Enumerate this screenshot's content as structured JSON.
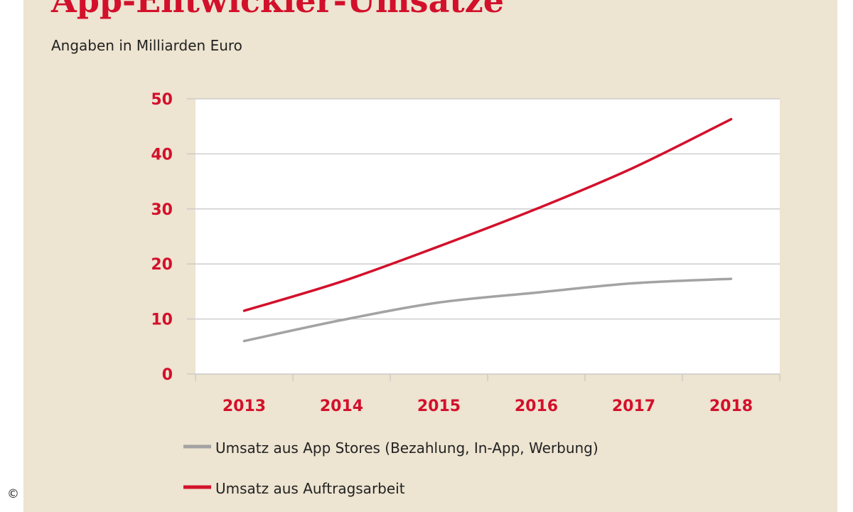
{
  "title": "App-Entwickler-Umsätze",
  "subtitle": "Angaben in Milliarden Euro",
  "copyright_symbol": "©",
  "colors": {
    "accent": "#d3102b",
    "gray_series": "#a3a3a3",
    "background": "#ede4d1",
    "plot_bg": "#ffffff"
  },
  "chart_data": {
    "type": "line",
    "title": "App-Entwickler-Umsätze",
    "subtitle": "Angaben in Milliarden Euro",
    "xlabel": "",
    "ylabel": "",
    "x": [
      "2013",
      "2014",
      "2015",
      "2016",
      "2017",
      "2018"
    ],
    "ylim": [
      0,
      50
    ],
    "yticks": [
      0,
      10,
      20,
      30,
      40,
      50
    ],
    "grid": true,
    "legend_position": "bottom",
    "series": [
      {
        "name": "Umsatz aus App Stores (Bezahlung, In-App, Werbung)",
        "color": "#a3a3a3",
        "values": [
          6,
          9.8,
          13,
          14.8,
          16.5,
          17.3
        ]
      },
      {
        "name": "Umsatz aus Auftragsarbeit",
        "color": "#d3102b",
        "values": [
          11.5,
          16.8,
          23.2,
          30,
          37.5,
          46.3
        ]
      }
    ]
  }
}
